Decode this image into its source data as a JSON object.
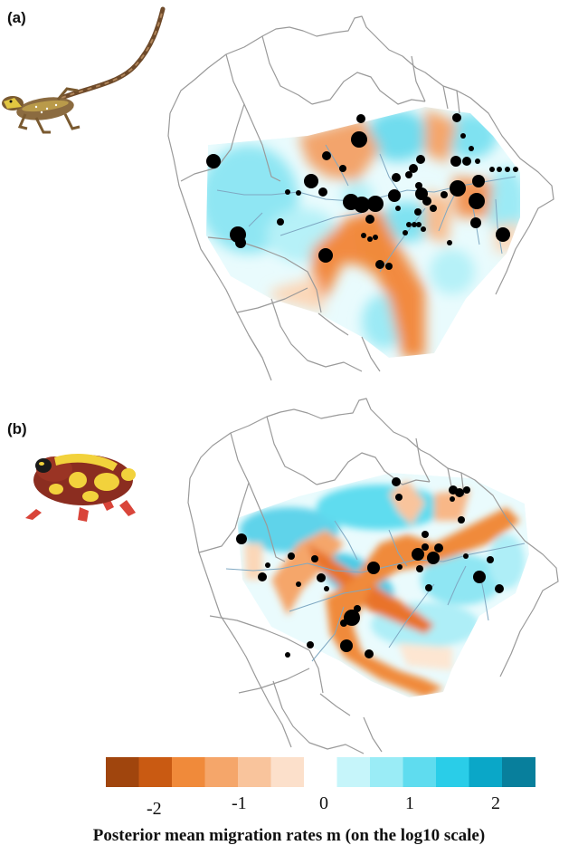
{
  "panels": [
    {
      "label": "(a)",
      "animal": "lizard",
      "icon": "lizard-photo"
    },
    {
      "label": "(b)",
      "animal": "frog",
      "icon": "frog-photo"
    }
  ],
  "legend": {
    "colors": [
      "#a0450d",
      "#c95a12",
      "#f08a3a",
      "#f5a66a",
      "#f9c49c",
      "#fce0cb",
      "#ffffff",
      "#c6f5fa",
      "#9aecf6",
      "#5fdcef",
      "#2acde8",
      "#0aa7c8",
      "#087f9c"
    ],
    "tick_labels": [
      "-2",
      "-1",
      "0",
      "1",
      "2"
    ],
    "title": "Posterior mean migration rates m (on the log10 scale)"
  }
}
